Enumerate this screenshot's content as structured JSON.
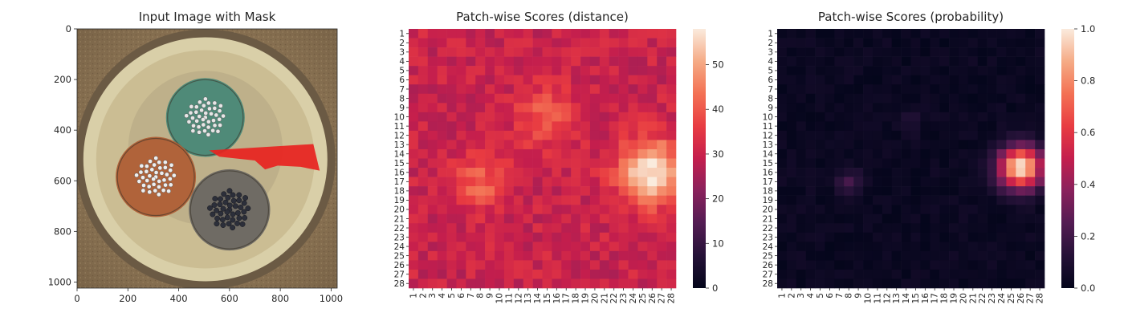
{
  "chart_data": [
    {
      "type": "image",
      "title": "Input Image with Mask",
      "xticks": [
        0,
        200,
        400,
        600,
        800,
        1000
      ],
      "yticks": [
        0,
        200,
        400,
        600,
        800,
        1000
      ],
      "xlim": [
        0,
        1024
      ],
      "ylim": [
        0,
        1024
      ],
      "mask_color": "#e8231f",
      "objects": [
        {
          "name": "green-cable",
          "color": "#4f8a78"
        },
        {
          "name": "orange-cable",
          "color": "#b0633a"
        },
        {
          "name": "gray-cable",
          "color": "#6f6b64"
        }
      ]
    },
    {
      "type": "heatmap",
      "title": "Patch-wise Scores (distance)",
      "rows": 28,
      "cols": 28,
      "vmin": 0,
      "vmax": 58,
      "colorbar_ticks": [
        0,
        10,
        20,
        30,
        40,
        50
      ],
      "colormap": "rocket",
      "base_value": 30,
      "hotspots": [
        {
          "row": 15.5,
          "col": 25.5,
          "peak": 58,
          "spread": 2.4
        },
        {
          "row": 9.5,
          "col": 14.5,
          "peak": 41,
          "spread": 2.2
        },
        {
          "row": 16.5,
          "col": 7.5,
          "peak": 42,
          "spread": 1.9
        }
      ]
    },
    {
      "type": "heatmap",
      "title": "Patch-wise Scores (probability)",
      "rows": 28,
      "cols": 28,
      "vmin": 0.0,
      "vmax": 1.0,
      "colorbar_ticks": [
        "0.0",
        "0.2",
        "0.4",
        "0.6",
        "0.8",
        "1.0"
      ],
      "colormap": "rocket",
      "base_value": 0.03,
      "hotspots": [
        {
          "row": 15.0,
          "col": 25.5,
          "peak": 1.0,
          "spread": 1.6
        },
        {
          "row": 16.5,
          "col": 7.5,
          "peak": 0.2,
          "spread": 0.9
        },
        {
          "row": 10.0,
          "col": 14.0,
          "peak": 0.12,
          "spread": 0.8
        }
      ]
    }
  ]
}
